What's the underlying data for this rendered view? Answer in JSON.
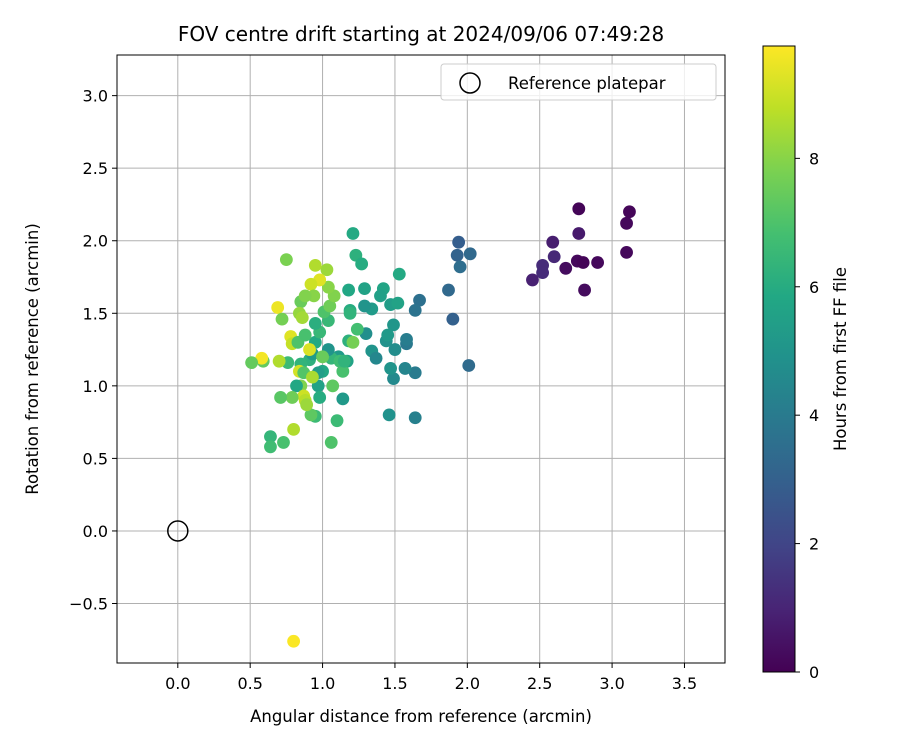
{
  "chart_data": {
    "type": "scatter",
    "title": "FOV centre drift starting at 2024/09/06 07:49:28",
    "xlabel": "Angular distance from reference (arcmin)",
    "ylabel": "Rotation from reference (arcmin)",
    "xlim": [
      -0.42,
      3.78
    ],
    "ylim": [
      -0.91,
      3.28
    ],
    "xticks": [
      "0.0",
      "0.5",
      "1.0",
      "1.5",
      "2.0",
      "2.5",
      "3.0",
      "3.5"
    ],
    "xtick_values": [
      0,
      0.5,
      1,
      1.5,
      2,
      2.5,
      3,
      3.5
    ],
    "yticks": [
      "−0.5",
      "0.0",
      "0.5",
      "1.0",
      "1.5",
      "2.0",
      "2.5",
      "3.0"
    ],
    "ytick_values": [
      -0.5,
      0,
      0.5,
      1,
      1.5,
      2,
      2.5,
      3
    ],
    "grid": true,
    "legend": {
      "position": "upper right",
      "label": "Reference platepar"
    },
    "reference_point": {
      "x": 0.0,
      "y": 0.0
    },
    "colorbar": {
      "label": "Hours from first FF file",
      "colormap": "viridis",
      "range": [
        0,
        9.75
      ],
      "ticks": [
        "0",
        "2",
        "4",
        "6",
        "8"
      ],
      "tick_values": [
        0,
        2,
        4,
        6,
        8
      ]
    },
    "points": [
      {
        "x": 2.77,
        "y": 2.22,
        "h": 0.1
      },
      {
        "x": 3.12,
        "y": 2.2,
        "h": 0.15
      },
      {
        "x": 3.1,
        "y": 2.12,
        "h": 0.2
      },
      {
        "x": 2.77,
        "y": 2.05,
        "h": 0.7
      },
      {
        "x": 2.59,
        "y": 1.99,
        "h": 0.8
      },
      {
        "x": 2.6,
        "y": 1.89,
        "h": 1.1
      },
      {
        "x": 3.1,
        "y": 1.92,
        "h": 0.2
      },
      {
        "x": 2.52,
        "y": 1.83,
        "h": 1.2
      },
      {
        "x": 2.52,
        "y": 1.78,
        "h": 1.2
      },
      {
        "x": 2.45,
        "y": 1.73,
        "h": 0.9
      },
      {
        "x": 2.68,
        "y": 1.81,
        "h": 0.3
      },
      {
        "x": 2.76,
        "y": 1.86,
        "h": 0.2
      },
      {
        "x": 2.8,
        "y": 1.85,
        "h": 0.1
      },
      {
        "x": 2.9,
        "y": 1.85,
        "h": 0.2
      },
      {
        "x": 2.81,
        "y": 1.66,
        "h": 0.3
      },
      {
        "x": 1.94,
        "y": 1.99,
        "h": 2.9
      },
      {
        "x": 1.93,
        "y": 1.9,
        "h": 3.1
      },
      {
        "x": 2.02,
        "y": 1.91,
        "h": 3.3
      },
      {
        "x": 1.95,
        "y": 1.82,
        "h": 3.5
      },
      {
        "x": 1.87,
        "y": 1.66,
        "h": 3.3
      },
      {
        "x": 1.9,
        "y": 1.46,
        "h": 3.0
      },
      {
        "x": 2.01,
        "y": 1.14,
        "h": 3.4
      },
      {
        "x": 1.67,
        "y": 1.59,
        "h": 3.6
      },
      {
        "x": 1.64,
        "y": 1.52,
        "h": 3.7
      },
      {
        "x": 1.58,
        "y": 1.29,
        "h": 3.9
      },
      {
        "x": 1.58,
        "y": 1.32,
        "h": 4.1
      },
      {
        "x": 1.64,
        "y": 1.09,
        "h": 4.0
      },
      {
        "x": 1.57,
        "y": 1.12,
        "h": 4.4
      },
      {
        "x": 1.64,
        "y": 0.78,
        "h": 4.2
      },
      {
        "x": 1.49,
        "y": 1.05,
        "h": 4.6
      },
      {
        "x": 1.46,
        "y": 0.8,
        "h": 4.9
      },
      {
        "x": 1.47,
        "y": 1.12,
        "h": 5.0
      },
      {
        "x": 1.5,
        "y": 1.25,
        "h": 4.7
      },
      {
        "x": 1.49,
        "y": 1.42,
        "h": 5.1
      },
      {
        "x": 1.44,
        "y": 1.31,
        "h": 4.9
      },
      {
        "x": 1.45,
        "y": 1.35,
        "h": 5.2
      },
      {
        "x": 1.34,
        "y": 1.24,
        "h": 5.0
      },
      {
        "x": 1.37,
        "y": 1.19,
        "h": 4.5
      },
      {
        "x": 1.3,
        "y": 1.36,
        "h": 4.8
      },
      {
        "x": 1.47,
        "y": 1.56,
        "h": 5.4
      },
      {
        "x": 1.52,
        "y": 1.57,
        "h": 5.6
      },
      {
        "x": 1.53,
        "y": 1.77,
        "h": 5.9
      },
      {
        "x": 1.42,
        "y": 1.67,
        "h": 5.7
      },
      {
        "x": 1.4,
        "y": 1.62,
        "h": 5.5
      },
      {
        "x": 1.34,
        "y": 1.53,
        "h": 5.3
      },
      {
        "x": 1.29,
        "y": 1.55,
        "h": 5.0
      },
      {
        "x": 1.29,
        "y": 1.67,
        "h": 5.6
      },
      {
        "x": 1.21,
        "y": 2.05,
        "h": 5.9
      },
      {
        "x": 1.23,
        "y": 1.9,
        "h": 6.2
      },
      {
        "x": 1.27,
        "y": 1.84,
        "h": 6.0
      },
      {
        "x": 1.18,
        "y": 1.66,
        "h": 5.8
      },
      {
        "x": 1.19,
        "y": 1.52,
        "h": 6.0
      },
      {
        "x": 1.19,
        "y": 1.5,
        "h": 6.3
      },
      {
        "x": 1.18,
        "y": 1.31,
        "h": 6.2
      },
      {
        "x": 1.24,
        "y": 1.39,
        "h": 6.8
      },
      {
        "x": 1.21,
        "y": 1.3,
        "h": 7.7
      },
      {
        "x": 1.17,
        "y": 1.17,
        "h": 5.6
      },
      {
        "x": 1.11,
        "y": 1.2,
        "h": 5.3
      },
      {
        "x": 1.14,
        "y": 1.1,
        "h": 6.9
      },
      {
        "x": 1.14,
        "y": 0.91,
        "h": 5.2
      },
      {
        "x": 1.1,
        "y": 0.76,
        "h": 6.6
      },
      {
        "x": 1.06,
        "y": 0.61,
        "h": 7.0
      },
      {
        "x": 1.07,
        "y": 1.0,
        "h": 7.3
      },
      {
        "x": 1.06,
        "y": 1.19,
        "h": 6.4
      },
      {
        "x": 1.04,
        "y": 1.25,
        "h": 5.0
      },
      {
        "x": 1.0,
        "y": 1.1,
        "h": 5.8
      },
      {
        "x": 0.97,
        "y": 1.09,
        "h": 5.4
      },
      {
        "x": 0.97,
        "y": 1.0,
        "h": 5.6
      },
      {
        "x": 0.98,
        "y": 0.92,
        "h": 6.0
      },
      {
        "x": 0.95,
        "y": 0.79,
        "h": 6.6
      },
      {
        "x": 0.92,
        "y": 0.8,
        "h": 7.3
      },
      {
        "x": 0.91,
        "y": 1.18,
        "h": 6.2
      },
      {
        "x": 0.93,
        "y": 1.22,
        "h": 5.3
      },
      {
        "x": 0.95,
        "y": 1.3,
        "h": 5.9
      },
      {
        "x": 0.98,
        "y": 1.37,
        "h": 6.5
      },
      {
        "x": 0.95,
        "y": 1.43,
        "h": 6.1
      },
      {
        "x": 1.04,
        "y": 1.45,
        "h": 6.5
      },
      {
        "x": 1.01,
        "y": 1.51,
        "h": 7.0
      },
      {
        "x": 1.05,
        "y": 1.55,
        "h": 7.6
      },
      {
        "x": 1.08,
        "y": 1.62,
        "h": 7.9
      },
      {
        "x": 1.04,
        "y": 1.68,
        "h": 8.0
      },
      {
        "x": 1.03,
        "y": 1.8,
        "h": 8.3
      },
      {
        "x": 0.95,
        "y": 1.83,
        "h": 8.6
      },
      {
        "x": 0.98,
        "y": 1.73,
        "h": 9.3
      },
      {
        "x": 0.92,
        "y": 1.7,
        "h": 9.0
      },
      {
        "x": 0.94,
        "y": 1.62,
        "h": 8.0
      },
      {
        "x": 0.85,
        "y": 1.58,
        "h": 7.5
      },
      {
        "x": 0.88,
        "y": 1.62,
        "h": 7.9
      },
      {
        "x": 0.84,
        "y": 1.5,
        "h": 8.2
      },
      {
        "x": 0.86,
        "y": 1.47,
        "h": 8.4
      },
      {
        "x": 0.75,
        "y": 1.87,
        "h": 7.8
      },
      {
        "x": 0.69,
        "y": 1.54,
        "h": 9.5
      },
      {
        "x": 0.72,
        "y": 1.46,
        "h": 7.7
      },
      {
        "x": 0.78,
        "y": 1.34,
        "h": 9.3
      },
      {
        "x": 0.79,
        "y": 1.29,
        "h": 8.9
      },
      {
        "x": 0.83,
        "y": 1.3,
        "h": 7.0
      },
      {
        "x": 0.88,
        "y": 1.35,
        "h": 6.9
      },
      {
        "x": 0.85,
        "y": 1.15,
        "h": 6.3
      },
      {
        "x": 0.84,
        "y": 1.1,
        "h": 9.1
      },
      {
        "x": 0.87,
        "y": 1.09,
        "h": 7.1
      },
      {
        "x": 0.85,
        "y": 1.0,
        "h": 7.9
      },
      {
        "x": 0.82,
        "y": 1.0,
        "h": 5.8
      },
      {
        "x": 0.87,
        "y": 0.93,
        "h": 9.0
      },
      {
        "x": 0.88,
        "y": 0.9,
        "h": 8.7
      },
      {
        "x": 0.89,
        "y": 0.87,
        "h": 8.3
      },
      {
        "x": 0.79,
        "y": 0.92,
        "h": 7.6
      },
      {
        "x": 0.71,
        "y": 0.92,
        "h": 7.2
      },
      {
        "x": 0.8,
        "y": 0.7,
        "h": 8.6
      },
      {
        "x": 0.73,
        "y": 0.61,
        "h": 6.9
      },
      {
        "x": 0.64,
        "y": 0.65,
        "h": 6.4
      },
      {
        "x": 0.64,
        "y": 0.58,
        "h": 6.7
      },
      {
        "x": 0.76,
        "y": 1.16,
        "h": 6.6
      },
      {
        "x": 0.7,
        "y": 1.17,
        "h": 8.6
      },
      {
        "x": 0.59,
        "y": 1.17,
        "h": 7.4
      },
      {
        "x": 0.58,
        "y": 1.19,
        "h": 9.6
      },
      {
        "x": 0.51,
        "y": 1.16,
        "h": 7.4
      },
      {
        "x": 0.8,
        "y": -0.76,
        "h": 9.7
      },
      {
        "x": 0.91,
        "y": 1.25,
        "h": 9.2
      },
      {
        "x": 0.93,
        "y": 1.06,
        "h": 8.5
      },
      {
        "x": 1.0,
        "y": 1.2,
        "h": 7.5
      },
      {
        "x": 1.12,
        "y": 1.17,
        "h": 6.7
      },
      {
        "x": 1.15,
        "y": 1.17,
        "h": 6.3
      }
    ]
  }
}
